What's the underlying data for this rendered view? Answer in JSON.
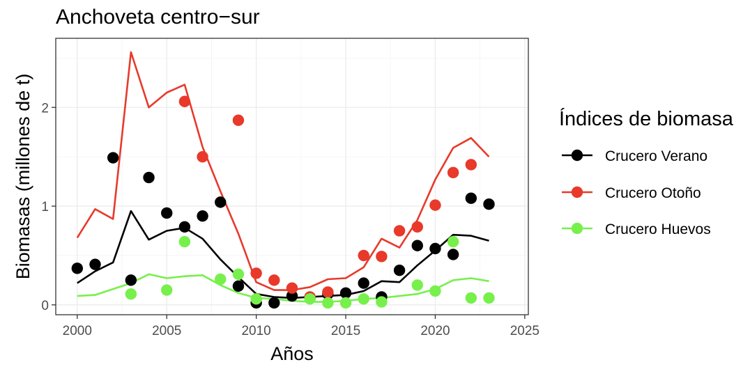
{
  "chart_data": {
    "type": "line",
    "title": "Anchoveta centro−sur",
    "xlabel": "Años",
    "ylabel": "Biomasas (millones de t)",
    "xlim": [
      1998.8,
      2025.2
    ],
    "ylim": [
      -0.1,
      2.7
    ],
    "xticks": [
      2000,
      2005,
      2010,
      2015,
      2020,
      2025
    ],
    "yticks": [
      0,
      1,
      2
    ],
    "grid": true,
    "legend": {
      "title": "Índices de biomasa",
      "placement": "right",
      "entries": [
        "Crucero Verano",
        "Crucero Otoño",
        "Crucero Huevos"
      ]
    },
    "x": [
      2000,
      2001,
      2002,
      2003,
      2004,
      2005,
      2006,
      2007,
      2008,
      2009,
      2010,
      2011,
      2012,
      2013,
      2014,
      2015,
      2016,
      2017,
      2018,
      2019,
      2020,
      2021,
      2022,
      2023
    ],
    "series": [
      {
        "name": "Crucero Verano",
        "color": "#000000",
        "line": [
          0.22,
          0.34,
          0.43,
          0.95,
          0.66,
          0.75,
          0.78,
          0.67,
          0.46,
          0.28,
          0.11,
          0.08,
          0.07,
          0.08,
          0.09,
          0.1,
          0.14,
          0.24,
          0.23,
          0.4,
          0.55,
          0.71,
          0.7,
          0.65
        ],
        "points": [
          0.37,
          0.41,
          1.49,
          0.25,
          1.29,
          0.93,
          0.79,
          0.9,
          1.04,
          0.19,
          0.02,
          0.02,
          0.09,
          0.07,
          0.11,
          0.12,
          0.22,
          0.08,
          0.35,
          0.6,
          0.57,
          0.51,
          1.08,
          1.02
        ]
      },
      {
        "name": "Crucero Otoño",
        "color": "#e8392a",
        "line": [
          0.68,
          0.97,
          0.87,
          2.56,
          2.0,
          2.15,
          2.23,
          1.6,
          1.15,
          0.72,
          0.23,
          0.15,
          0.15,
          0.18,
          0.26,
          0.27,
          0.38,
          0.67,
          0.58,
          0.86,
          1.27,
          1.59,
          1.69,
          1.5
        ],
        "points": [
          null,
          null,
          null,
          null,
          null,
          null,
          2.06,
          1.5,
          null,
          1.87,
          0.32,
          0.25,
          0.17,
          0.08,
          0.13,
          null,
          0.5,
          0.49,
          0.75,
          0.79,
          1.01,
          1.34,
          1.42,
          null
        ]
      },
      {
        "name": "Crucero Huevos",
        "color": "#77f04c",
        "line": [
          0.09,
          0.1,
          0.16,
          0.22,
          0.31,
          0.27,
          0.29,
          0.3,
          0.2,
          0.12,
          0.07,
          0.06,
          0.04,
          0.03,
          0.03,
          0.04,
          0.06,
          0.07,
          0.09,
          0.11,
          0.16,
          0.25,
          0.27,
          0.24
        ],
        "points": [
          null,
          null,
          null,
          0.11,
          null,
          0.15,
          0.64,
          null,
          0.26,
          0.31,
          0.06,
          null,
          null,
          0.06,
          0.02,
          0.02,
          0.06,
          0.03,
          null,
          0.2,
          0.14,
          0.64,
          0.07,
          0.07
        ]
      }
    ]
  }
}
